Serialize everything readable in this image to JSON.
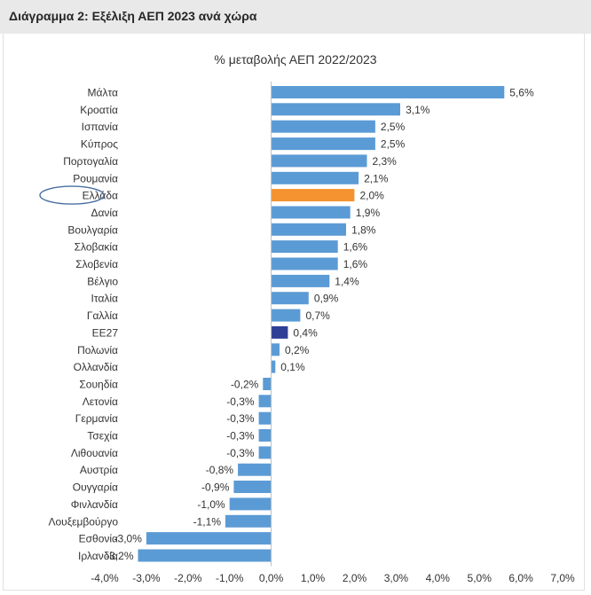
{
  "header": {
    "title": "Διάγραμμα 2: Εξέλιξη ΑΕΠ 2023 ανά χώρα"
  },
  "colors": {
    "default_bar": "#5b9bd5",
    "highlight_bar": "#f4932f",
    "eu_bar": "#2f3f96",
    "circle": "#4a6fa5",
    "text": "#333333"
  },
  "chart_data": {
    "type": "bar",
    "orientation": "horizontal",
    "title": "% μεταβολής ΑΕΠ 2022/2023",
    "xlabel": "",
    "ylabel": "",
    "xlim": [
      -4.0,
      7.0
    ],
    "x_ticks": [
      -4.0,
      -3.0,
      -2.0,
      -1.0,
      0.0,
      1.0,
      2.0,
      3.0,
      4.0,
      5.0,
      6.0,
      7.0
    ],
    "x_tick_labels": [
      "-4,0%",
      "-3,0%",
      "-2,0%",
      "-1,0%",
      "0,0%",
      "1,0%",
      "2,0%",
      "3,0%",
      "4,0%",
      "5,0%",
      "6,0%",
      "7,0%"
    ],
    "grid": false,
    "highlighted": "Ελλάδα",
    "eu_average": "ΕΕ27",
    "categories": [
      "Μάλτα",
      "Κροατία",
      "Ισπανία",
      "Κύπρος",
      "Πορτογαλία",
      "Ρουμανία",
      "Ελλάδα",
      "Δανία",
      "Βουλγαρία",
      "Σλοβακία",
      "Σλοβενία",
      "Βέλγιο",
      "Ιταλία",
      "Γαλλία",
      "ΕΕ27",
      "Πολωνία",
      "Ολλανδία",
      "Σουηδία",
      "Λετονία",
      "Γερμανία",
      "Τσεχία",
      "Λιθουανία",
      "Αυστρία",
      "Ουγγαρία",
      "Φινλανδία",
      "Λουξεμβούργο",
      "Εσθονία",
      "Ιρλανδία"
    ],
    "values": [
      5.6,
      3.1,
      2.5,
      2.5,
      2.3,
      2.1,
      2.0,
      1.9,
      1.8,
      1.6,
      1.6,
      1.4,
      0.9,
      0.7,
      0.4,
      0.2,
      0.1,
      -0.2,
      -0.3,
      -0.3,
      -0.3,
      -0.3,
      -0.8,
      -0.9,
      -1.0,
      -1.1,
      -3.0,
      -3.2
    ],
    "value_labels": [
      "5,6%",
      "3,1%",
      "2,5%",
      "2,5%",
      "2,3%",
      "2,1%",
      "2,0%",
      "1,9%",
      "1,8%",
      "1,6%",
      "1,6%",
      "1,4%",
      "0,9%",
      "0,7%",
      "0,4%",
      "0,2%",
      "0,1%",
      "-0,2%",
      "-0,3%",
      "-0,3%",
      "-0,3%",
      "-0,3%",
      "-0,8%",
      "-0,9%",
      "-1,0%",
      "-1,1%",
      "-3,0%",
      "-3,2%"
    ]
  }
}
